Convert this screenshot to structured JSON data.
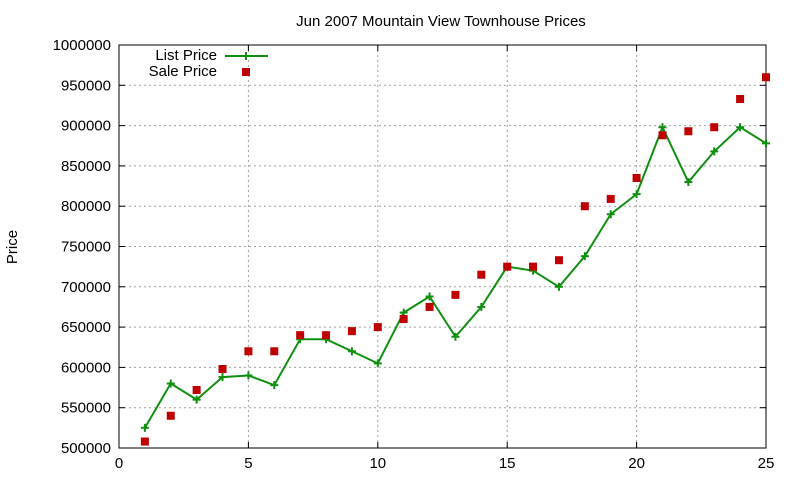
{
  "chart_data": {
    "type": "line",
    "title": "Jun 2007 Mountain View Townhouse Prices",
    "xlabel": "",
    "ylabel": "Price",
    "xlim": [
      0,
      25
    ],
    "ylim": [
      500000,
      1000000
    ],
    "x_ticks": [
      0,
      5,
      10,
      15,
      20,
      25
    ],
    "y_ticks": [
      500000,
      550000,
      600000,
      650000,
      700000,
      750000,
      800000,
      850000,
      900000,
      950000,
      1000000
    ],
    "grid": true,
    "legend_position": "top-left",
    "series": [
      {
        "name": "List Price",
        "style": "line-with-plus-markers",
        "color": "#109010",
        "x": [
          1,
          2,
          3,
          4,
          5,
          6,
          7,
          8,
          9,
          10,
          11,
          12,
          13,
          14,
          15,
          16,
          17,
          18,
          19,
          20,
          21,
          22,
          23,
          24,
          25
        ],
        "values": [
          525000,
          580000,
          560000,
          588000,
          590000,
          578000,
          635000,
          635000,
          620000,
          605000,
          668000,
          688000,
          638000,
          675000,
          725000,
          720000,
          700000,
          738000,
          790000,
          815000,
          898000,
          830000,
          868000,
          898000,
          878000
        ]
      },
      {
        "name": "Sale Price",
        "style": "square-markers",
        "color": "#c00000",
        "x": [
          1,
          2,
          3,
          4,
          5,
          6,
          7,
          8,
          9,
          10,
          11,
          12,
          13,
          14,
          15,
          16,
          17,
          18,
          19,
          20,
          21,
          22,
          23,
          24,
          25
        ],
        "values": [
          508000,
          540000,
          572000,
          598000,
          620000,
          620000,
          640000,
          640000,
          645000,
          650000,
          660000,
          675000,
          690000,
          715000,
          725000,
          725000,
          733000,
          800000,
          809000,
          835000,
          888000,
          893000,
          898000,
          933000,
          960000
        ]
      }
    ]
  }
}
